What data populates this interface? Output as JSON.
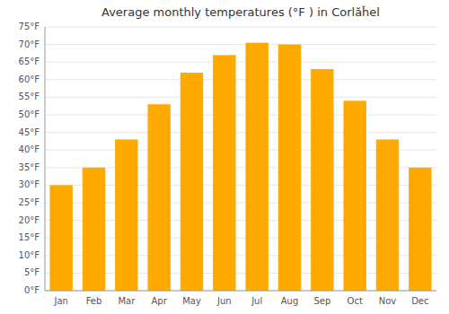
{
  "chart_data": {
    "type": "bar",
    "title": "Average monthly temperatures (°F ) in Corlăȟel",
    "categories": [
      "Jan",
      "Feb",
      "Mar",
      "Apr",
      "May",
      "Jun",
      "Jul",
      "Aug",
      "Sep",
      "Oct",
      "Nov",
      "Dec"
    ],
    "values": [
      30.0,
      35.0,
      43.0,
      53.0,
      62.0,
      67.0,
      70.5,
      70.0,
      63.0,
      54.0,
      43.0,
      35.0
    ],
    "color": "#FFAA00",
    "ylim": [
      0,
      75
    ],
    "yticks": [
      {
        "value": 0,
        "label": "0°F"
      },
      {
        "value": 5,
        "label": "5°F"
      },
      {
        "value": 10,
        "label": "10°F"
      },
      {
        "value": 15,
        "label": "15°F"
      },
      {
        "value": 20,
        "label": "20°F"
      },
      {
        "value": 25,
        "label": "25°F"
      },
      {
        "value": 30,
        "label": "30°F"
      },
      {
        "value": 35,
        "label": "35°F"
      },
      {
        "value": 40,
        "label": "40°F"
      },
      {
        "value": 45,
        "label": "45°F"
      },
      {
        "value": 50,
        "label": "50°F"
      },
      {
        "value": 55,
        "label": "55°F"
      },
      {
        "value": 60,
        "label": "60°F"
      },
      {
        "value": 65,
        "label": "65°F"
      },
      {
        "value": 70,
        "label": "70°F"
      },
      {
        "value": 75,
        "label": "75°F"
      }
    ],
    "grid": true
  }
}
